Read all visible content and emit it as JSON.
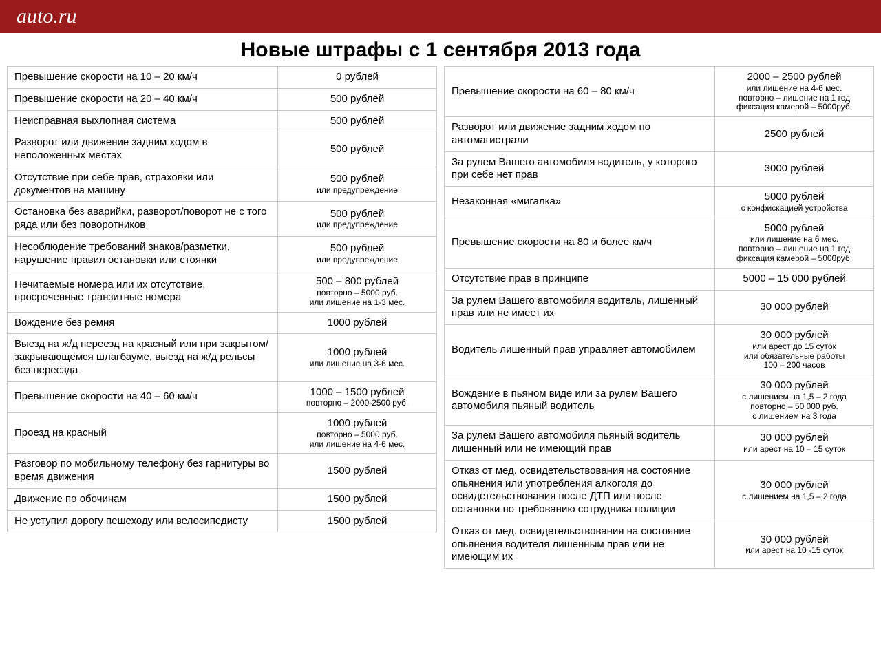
{
  "header": {
    "logo": "auto.ru"
  },
  "title": "Новые штрафы с 1 сентября 2013 года",
  "left": [
    {
      "offense": "Превышение скорости на 10 – 20 км/ч",
      "penalty": "0 рублей",
      "sub": []
    },
    {
      "offense": "Превышение скорости на 20 – 40 км/ч",
      "penalty": "500 рублей",
      "sub": []
    },
    {
      "offense": "Неисправная выхлопная система",
      "penalty": "500 рублей",
      "sub": []
    },
    {
      "offense": "Разворот или движение задним ходом в неположенных местах",
      "penalty": "500 рублей",
      "sub": []
    },
    {
      "offense": "Отсутствие при себе прав, страховки или документов на машину",
      "penalty": "500 рублей",
      "sub": [
        "или предупреждение"
      ]
    },
    {
      "offense": "Остановка без аварийки, разворот/поворот не с того ряда или без поворотников",
      "penalty": "500 рублей",
      "sub": [
        "или предупреждение"
      ]
    },
    {
      "offense": "Несоблюдение требований знаков/разметки, нарушение правил остановки или стоянки",
      "penalty": "500 рублей",
      "sub": [
        "или предупреждение"
      ]
    },
    {
      "offense": "Нечитаемые номера или их отсутствие, просроченные транзитные номера",
      "penalty": "500 – 800 рублей",
      "sub": [
        "повторно – 5000 руб.",
        "или лишение на 1-3 мес."
      ]
    },
    {
      "offense": "Вождение без ремня",
      "penalty": "1000 рублей",
      "sub": []
    },
    {
      "offense": "Выезд на ж/д переезд на красный или при закрытом/закрывающемся шлагбауме, выезд на ж/д рельсы без переезда",
      "penalty": "1000 рублей",
      "sub": [
        "или лишение на 3-6 мес."
      ]
    },
    {
      "offense": "Превышение скорости на 40 – 60 км/ч",
      "penalty": "1000 – 1500 рублей",
      "sub": [
        "повторно – 2000-2500 руб."
      ]
    },
    {
      "offense": "Проезд на красный",
      "penalty": "1000 рублей",
      "sub": [
        "повторно – 5000 руб.",
        "или лишение на 4-6 мес."
      ]
    },
    {
      "offense": "Разговор по мобильному телефону без гарнитуры во время движения",
      "penalty": "1500 рублей",
      "sub": []
    },
    {
      "offense": "Движение по обочинам",
      "penalty": "1500 рублей",
      "sub": []
    },
    {
      "offense": "Не уступил дорогу пешеходу или велосипедисту",
      "penalty": "1500 рублей",
      "sub": []
    }
  ],
  "right": [
    {
      "offense": "Превышение скорости на 60 – 80 км/ч",
      "penalty": "2000 – 2500 рублей",
      "sub": [
        "или лишение на 4-6 мес.",
        "повторно – лишение на 1 год",
        "фиксация камерой – 5000руб."
      ]
    },
    {
      "offense": "Разворот или движение задним ходом по автомагистрали",
      "penalty": "2500 рублей",
      "sub": []
    },
    {
      "offense": "За рулем Вашего автомобиля водитель, у которого при себе нет прав",
      "penalty": "3000 рублей",
      "sub": []
    },
    {
      "offense": "Незаконная «мигалка»",
      "penalty": "5000 рублей",
      "sub": [
        "с конфискацией устройства"
      ]
    },
    {
      "offense": "Превышение скорости на 80 и более км/ч",
      "penalty": "5000 рублей",
      "sub": [
        "или лишение на 6 мес.",
        "повторно – лишение на 1 год",
        "фиксация камерой – 5000руб."
      ]
    },
    {
      "offense": "Отсутствие прав в принципе",
      "penalty": "5000 – 15 000 рублей",
      "sub": []
    },
    {
      "offense": "За рулем Вашего автомобиля водитель, лишенный прав или не имеет их",
      "penalty": "30 000 рублей",
      "sub": []
    },
    {
      "offense": "Водитель лишенный прав управляет автомобилем",
      "penalty": "30 000 рублей",
      "sub": [
        "или арест до 15 суток",
        "или обязательные работы",
        "100 – 200 часов"
      ]
    },
    {
      "offense": "Вождение в пьяном виде или за рулем Вашего автомобиля пьяный водитель",
      "penalty": "30 000 рублей",
      "sub": [
        "с лишением на 1,5 – 2 года",
        "повторно – 50 000 руб.",
        "с лишением на 3 года"
      ]
    },
    {
      "offense": "За рулем Вашего автомобиля пьяный водитель лишенный или не имеющий прав",
      "penalty": "30 000 рублей",
      "sub": [
        "или арест на 10 – 15 суток"
      ]
    },
    {
      "offense": "Отказ от мед. освидетельствования на состояние опьянения или употребления алкоголя до освидетельствования после ДТП или после остановки по требованию сотрудника полиции",
      "penalty": "30 000 рублей",
      "sub": [
        "с лишением на 1,5 – 2 года"
      ]
    },
    {
      "offense": "Отказ от мед. освидетельствования на состояние опьянения водителя лишенным прав или не имеющим их",
      "penalty": "30 000 рублей",
      "sub": [
        "или арест на 10 -15 суток"
      ]
    }
  ]
}
